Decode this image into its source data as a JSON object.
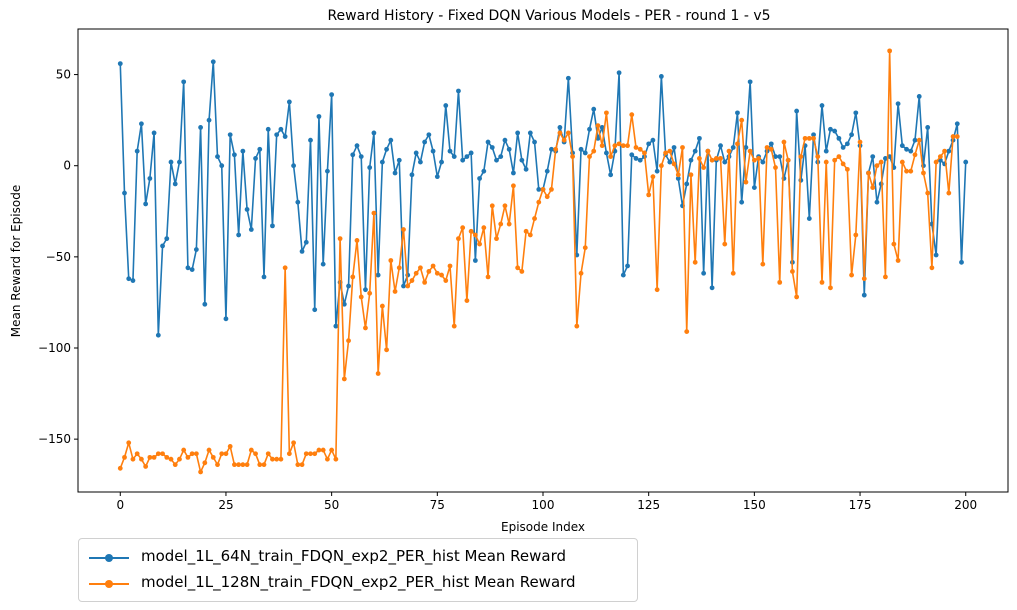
{
  "chart_data": {
    "type": "line",
    "title": "Reward History - Fixed DQN Various Models - PER - round 1 - v5",
    "xlabel": "Episode Index",
    "ylabel": "Mean Reward for Episode",
    "xlim": [
      -10,
      210
    ],
    "ylim": [
      -179,
      75
    ],
    "xticks": [
      0,
      25,
      50,
      75,
      100,
      125,
      150,
      175,
      200
    ],
    "xtick_labels": [
      "0",
      "25",
      "50",
      "75",
      "100",
      "125",
      "150",
      "175",
      "200"
    ],
    "yticks": [
      50,
      0,
      -50,
      -100,
      -150
    ],
    "ytick_labels": [
      "50",
      "0",
      "−50",
      "−100",
      "−150"
    ],
    "grid": false,
    "legend_position": "bottom-left, below the axes",
    "series": [
      {
        "name": "model_1L_64N_train_FDQN_exp2_PER_hist Mean Reward",
        "color": "#1f77b4",
        "x_start": 0,
        "values": [
          56,
          -15,
          -62,
          -63,
          8,
          23,
          -21,
          -7,
          18,
          -93,
          -44,
          -40,
          2,
          -10,
          2,
          46,
          -56,
          -57,
          -46,
          21,
          -76,
          25,
          57,
          5,
          0,
          -84,
          17,
          6,
          -38,
          8,
          -24,
          -35,
          4,
          9,
          -61,
          20,
          -33,
          17,
          20,
          16,
          35,
          0,
          -20,
          -47,
          -42,
          14,
          -79,
          27,
          -54,
          -3,
          39,
          -88,
          -64,
          -76,
          -66,
          6,
          11,
          5,
          -68,
          -1,
          18,
          -60,
          2,
          9,
          14,
          -4,
          3,
          -66,
          -60,
          -5,
          7,
          2,
          13,
          17,
          8,
          -6,
          2,
          33,
          8,
          5,
          41,
          3,
          5,
          7,
          -52,
          -7,
          -3,
          13,
          10,
          3,
          5,
          14,
          9,
          -4,
          18,
          3,
          -2,
          18,
          13,
          -13,
          -13,
          -3,
          9,
          8,
          21,
          13,
          48,
          7,
          -49,
          9,
          7,
          20,
          31,
          15,
          21,
          7,
          -5,
          8,
          51,
          -60,
          -55,
          6,
          4,
          3,
          5,
          12,
          14,
          -3,
          49,
          6,
          2,
          10,
          -7,
          -22,
          -10,
          3,
          8,
          15,
          -59,
          8,
          -67,
          3,
          11,
          2,
          5,
          10,
          29,
          -20,
          10,
          46,
          -12,
          5,
          2,
          8,
          12,
          5,
          5,
          -7,
          3,
          -53,
          30,
          -8,
          11,
          -29,
          17,
          2,
          33,
          8,
          20,
          19,
          15,
          10,
          12,
          17,
          29,
          11,
          -71,
          -4,
          5,
          -20,
          -10,
          4,
          5,
          -1,
          34,
          11,
          9,
          8,
          14,
          38,
          0,
          21,
          -32,
          -49,
          3,
          1,
          8,
          14,
          23,
          -53,
          2
        ]
      },
      {
        "name": "model_1L_128N_train_FDQN_exp2_PER_hist Mean Reward",
        "color": "#ff7f0e",
        "x_start": 0,
        "values": [
          -166,
          -160,
          -152,
          -161,
          -158,
          -161,
          -165,
          -160,
          -160,
          -158,
          -158,
          -160,
          -161,
          -164,
          -161,
          -156,
          -160,
          -158,
          -158,
          -168,
          -163,
          -156,
          -160,
          -164,
          -158,
          -158,
          -154,
          -164,
          -164,
          -164,
          -164,
          -156,
          -158,
          -164,
          -164,
          -158,
          -161,
          -161,
          -161,
          -56,
          -158,
          -152,
          -164,
          -164,
          -158,
          -158,
          -158,
          -156,
          -156,
          -161,
          -156,
          -161,
          -40,
          -117,
          -96,
          -61,
          -41,
          -72,
          -89,
          -70,
          -26,
          -114,
          -77,
          -101,
          -52,
          -69,
          -56,
          -35,
          -66,
          -63,
          -59,
          -56,
          -64,
          -58,
          -55,
          -59,
          -60,
          -63,
          -55,
          -88,
          -40,
          -34,
          -74,
          -36,
          -38,
          -43,
          -34,
          -61,
          -22,
          -40,
          -32,
          -22,
          -32,
          -11,
          -56,
          -58,
          -36,
          -38,
          -29,
          -20,
          -13,
          -17,
          -13,
          9,
          18,
          14,
          18,
          5,
          -88,
          -59,
          -45,
          5,
          8,
          22,
          11,
          29,
          5,
          11,
          12,
          11,
          11,
          28,
          10,
          9,
          7,
          -16,
          -6,
          -68,
          0,
          7,
          8,
          1,
          -5,
          10,
          -91,
          -5,
          -53,
          4,
          -1,
          8,
          3,
          4,
          4,
          -43,
          8,
          -59,
          12,
          25,
          -9,
          8,
          3,
          4,
          -54,
          10,
          9,
          -1,
          -64,
          13,
          3,
          -58,
          -72,
          5,
          15,
          15,
          15,
          5,
          -64,
          2,
          -67,
          3,
          5,
          1,
          -2,
          -60,
          -38,
          13,
          -62,
          -4,
          -12,
          0,
          2,
          -61,
          63,
          -43,
          -52,
          2,
          -3,
          -3,
          6,
          14,
          -4,
          -15,
          -56,
          2,
          5,
          8,
          -15,
          16,
          16
        ]
      }
    ]
  }
}
